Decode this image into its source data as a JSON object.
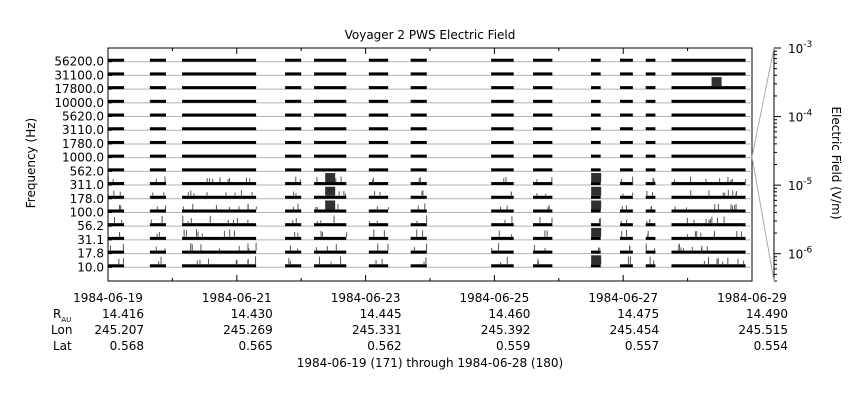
{
  "chart_data": {
    "type": "heatmap",
    "title": "Voyager 2 PWS Electric Field",
    "ylabel": "Frequency (Hz)",
    "colorbar_label": "Electric Field (V/m)",
    "xlabel": "1984-06-19 (171) through 1984-06-28 (180)",
    "y_tick_labels": [
      "56200.0",
      "31100.0",
      "17800.0",
      "10000.0",
      "5620.0",
      "3110.0",
      "1780.0",
      "1000.0",
      "562.0",
      "311.0",
      "178.0",
      "100.0",
      "56.2",
      "31.1",
      "17.8",
      "10.0"
    ],
    "channels": 16,
    "colorbar": {
      "scale": "log",
      "range": [
        4e-07,
        0.001
      ],
      "ticks": [
        {
          "value": 0.001,
          "base": "10",
          "exp": "-3"
        },
        {
          "value": 0.0001,
          "base": "10",
          "exp": "-4"
        },
        {
          "value": 1e-05,
          "base": "10",
          "exp": "-5"
        },
        {
          "value": 1e-06,
          "base": "10",
          "exp": "-6"
        }
      ]
    },
    "x_range_days": [
      0,
      10
    ],
    "x_major_ticks": [
      {
        "date": "1984-06-19",
        "R": "14.416",
        "Lon": "245.207",
        "Lat": "0.568"
      },
      {
        "date": "1984-06-21",
        "R": "14.430",
        "Lon": "245.269",
        "Lat": "0.565"
      },
      {
        "date": "1984-06-23",
        "R": "14.445",
        "Lon": "245.331",
        "Lat": "0.562"
      },
      {
        "date": "1984-06-25",
        "R": "14.460",
        "Lon": "245.392",
        "Lat": "0.559"
      },
      {
        "date": "1984-06-27",
        "R": "14.475",
        "Lon": "245.454",
        "Lat": "0.557"
      },
      {
        "date": "1984-06-29",
        "R": "14.490",
        "Lon": "245.515",
        "Lat": "0.554"
      }
    ],
    "row_labels": {
      "r": "R",
      "r_sub": "AU",
      "lon": "Lon",
      "lat": "Lat"
    },
    "data_segments_days": [
      [
        0.0,
        0.25
      ],
      [
        0.65,
        0.9
      ],
      [
        1.15,
        2.3
      ],
      [
        2.75,
        3.0
      ],
      [
        3.2,
        3.7
      ],
      [
        4.05,
        4.35
      ],
      [
        4.7,
        4.95
      ],
      [
        5.95,
        6.3
      ],
      [
        6.6,
        6.9
      ],
      [
        7.5,
        7.65
      ],
      [
        7.95,
        8.15
      ],
      [
        8.35,
        8.5
      ],
      [
        8.75,
        9.9
      ]
    ],
    "bursts": [
      {
        "day": 3.45,
        "channels": [
          9,
          10,
          11
        ]
      },
      {
        "day": 7.58,
        "channels": [
          9,
          10,
          11,
          13,
          15
        ]
      },
      {
        "day": 9.45,
        "channels": [
          2
        ]
      }
    ]
  }
}
